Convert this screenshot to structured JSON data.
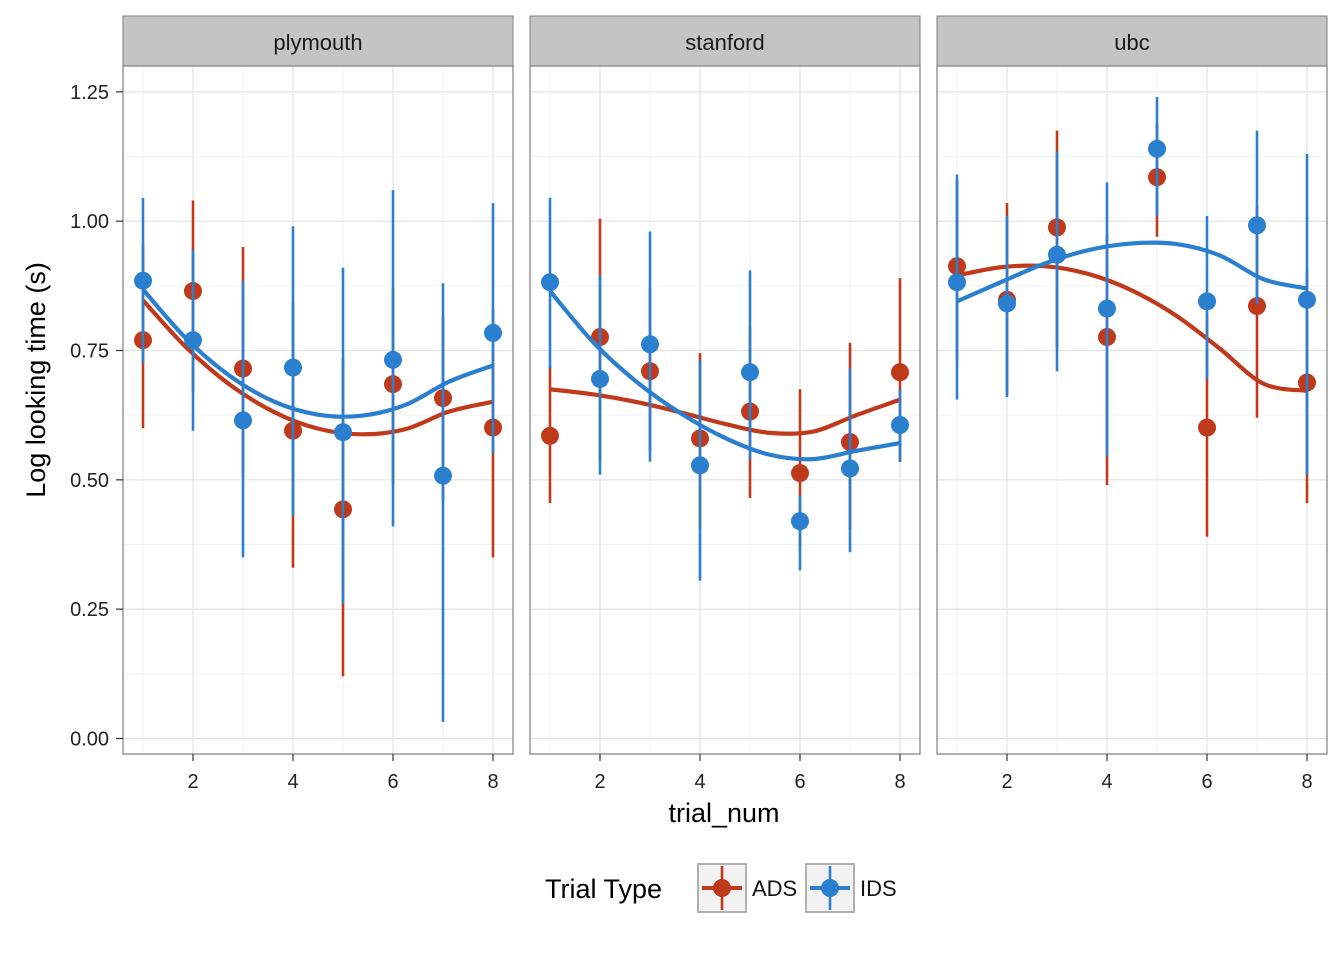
{
  "chart_data": {
    "type": "line",
    "title": "",
    "xlabel": "trial_num",
    "ylabel": "Log looking time (s)",
    "xlim": [
      0.6,
      8.4
    ],
    "ylim": [
      -0.03,
      1.3
    ],
    "x_ticks": [
      2,
      4,
      6,
      8
    ],
    "x_tick_labels": [
      "2",
      "4",
      "6",
      "8"
    ],
    "y_ticks": [
      0,
      0.25,
      0.5,
      0.75,
      1.0,
      1.25
    ],
    "y_tick_labels": [
      "0.00",
      "0.25",
      "0.50",
      "0.75",
      "1.00",
      "1.25"
    ],
    "grid": true,
    "legend": {
      "title": "Trial Type",
      "position": "bottom",
      "entries": [
        {
          "label": "ADS",
          "color": "#c0391b"
        },
        {
          "label": "IDS",
          "color": "#2a7fcf"
        }
      ]
    },
    "facets": [
      {
        "label": "plymouth",
        "series": [
          {
            "name": "ADS",
            "color": "#c0391b",
            "x": [
              1,
              2,
              3,
              4,
              5,
              6,
              7,
              8
            ],
            "y": [
              0.77,
              0.865,
              0.715,
              0.595,
              0.443,
              0.685,
              0.658,
              0.601
            ],
            "ci_low": [
              0.6,
              0.67,
              0.505,
              0.33,
              0.12,
              0.49,
              0.46,
              0.35
            ],
            "ci_high": [
              0.955,
              1.04,
              0.95,
              0.845,
              0.735,
              0.87,
              0.815,
              0.83
            ],
            "trend": [
              0.847,
              0.755,
              0.683,
              0.631,
              0.599,
              0.588,
              0.598,
              0.632,
              0.651
            ]
          },
          {
            "name": "IDS",
            "color": "#2a7fcf",
            "x": [
              1,
              2,
              3,
              4,
              5,
              6,
              7,
              8
            ],
            "y": [
              0.885,
              0.77,
              0.615,
              0.717,
              0.592,
              0.732,
              0.508,
              0.784
            ],
            "ci_low": [
              0.725,
              0.595,
              0.35,
              0.43,
              0.26,
              0.41,
              0.032,
              0.55
            ],
            "ci_high": [
              1.045,
              0.945,
              0.885,
              0.99,
              0.91,
              1.06,
              0.88,
              1.035
            ],
            "trend": [
              0.868,
              0.772,
              0.7,
              0.651,
              0.626,
              0.624,
              0.645,
              0.69,
              0.721
            ]
          }
        ]
      },
      {
        "label": "stanford",
        "series": [
          {
            "name": "ADS",
            "color": "#c0391b",
            "x": [
              1,
              2,
              3,
              4,
              5,
              6,
              7,
              8
            ],
            "y": [
              0.585,
              0.776,
              0.71,
              0.58,
              0.632,
              0.513,
              0.573,
              0.708
            ],
            "ci_low": [
              0.455,
              0.535,
              0.555,
              0.405,
              0.465,
              0.37,
              0.405,
              0.535
            ],
            "ci_high": [
              0.72,
              1.005,
              0.87,
              0.745,
              0.795,
              0.675,
              0.765,
              0.89
            ],
            "trend": [
              0.675,
              0.665,
              0.65,
              0.63,
              0.608,
              0.591,
              0.593,
              0.625,
              0.655
            ]
          },
          {
            "name": "IDS",
            "color": "#2a7fcf",
            "x": [
              1,
              2,
              3,
              4,
              5,
              6,
              7,
              8
            ],
            "y": [
              0.882,
              0.695,
              0.762,
              0.528,
              0.708,
              0.42,
              0.522,
              0.606
            ],
            "ci_low": [
              0.715,
              0.51,
              0.535,
              0.305,
              0.54,
              0.325,
              0.36,
              0.535
            ],
            "ci_high": [
              1.045,
              0.895,
              0.98,
              0.73,
              0.905,
              0.47,
              0.715,
              0.675
            ],
            "trend": [
              0.865,
              0.765,
              0.688,
              0.628,
              0.581,
              0.549,
              0.54,
              0.556,
              0.571
            ]
          }
        ]
      },
      {
        "label": "ubc",
        "series": [
          {
            "name": "ADS",
            "color": "#c0391b",
            "x": [
              1,
              2,
              3,
              4,
              5,
              6,
              7,
              8
            ],
            "y": [
              0.913,
              0.848,
              0.988,
              0.776,
              1.085,
              0.601,
              0.836,
              0.688
            ],
            "ci_low": [
              0.73,
              0.665,
              0.755,
              0.49,
              0.97,
              0.39,
              0.62,
              0.455
            ],
            "ci_high": [
              1.08,
              1.035,
              1.175,
              0.975,
              1.19,
              0.82,
              1.03,
              0.905
            ],
            "trend": [
              0.895,
              0.911,
              0.913,
              0.898,
              0.866,
              0.818,
              0.754,
              0.686,
              0.672
            ]
          },
          {
            "name": "IDS",
            "color": "#2a7fcf",
            "x": [
              1,
              2,
              3,
              4,
              5,
              6,
              7,
              8
            ],
            "y": [
              0.882,
              0.841,
              0.935,
              0.831,
              1.14,
              0.845,
              0.992,
              0.848
            ],
            "ci_low": [
              0.655,
              0.66,
              0.71,
              0.545,
              1.01,
              0.695,
              0.84,
              0.51
            ],
            "ci_high": [
              1.09,
              1.01,
              1.135,
              1.075,
              1.24,
              1.01,
              1.175,
              1.13
            ],
            "trend": [
              0.845,
              0.882,
              0.918,
              0.944,
              0.957,
              0.956,
              0.934,
              0.888,
              0.87
            ]
          }
        ]
      }
    ]
  }
}
